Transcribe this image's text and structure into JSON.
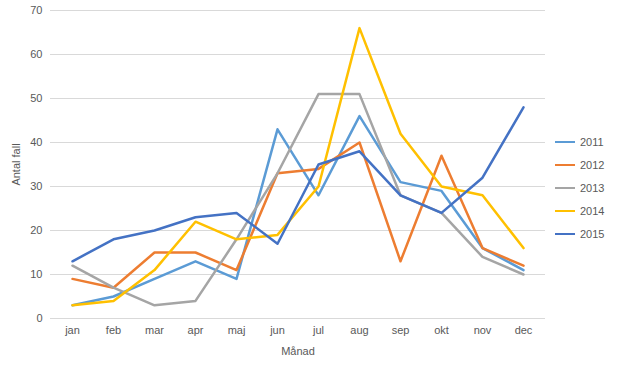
{
  "chart_data": {
    "type": "line",
    "x_label": "Månad",
    "y_label": "Antal fall",
    "categories": [
      "jan",
      "feb",
      "mar",
      "apr",
      "maj",
      "jun",
      "jul",
      "aug",
      "sep",
      "okt",
      "nov",
      "dec"
    ],
    "series": [
      {
        "name": "2011",
        "color": "#5B9BD5",
        "values": [
          3,
          5,
          9,
          13,
          9,
          43,
          28,
          46,
          31,
          29,
          16,
          11
        ]
      },
      {
        "name": "2012",
        "color": "#ED7D31",
        "values": [
          9,
          7,
          15,
          15,
          11,
          33,
          34,
          40,
          13,
          37,
          16,
          12
        ]
      },
      {
        "name": "2013",
        "color": "#A5A5A5",
        "values": [
          12,
          7,
          3,
          4,
          18,
          33,
          51,
          51,
          28,
          24,
          14,
          10
        ]
      },
      {
        "name": "2014",
        "color": "#FFC000",
        "values": [
          3,
          4,
          11,
          22,
          18,
          19,
          30,
          66,
          42,
          30,
          28,
          16
        ]
      },
      {
        "name": "2015",
        "color": "#4472C4",
        "values": [
          13,
          18,
          20,
          23,
          24,
          17,
          35,
          38,
          28,
          24,
          32,
          48
        ]
      }
    ],
    "ylim": [
      0,
      70
    ],
    "yticks": [
      0,
      10,
      20,
      30,
      40,
      50,
      60,
      70
    ],
    "grid": true,
    "legend": "right"
  }
}
